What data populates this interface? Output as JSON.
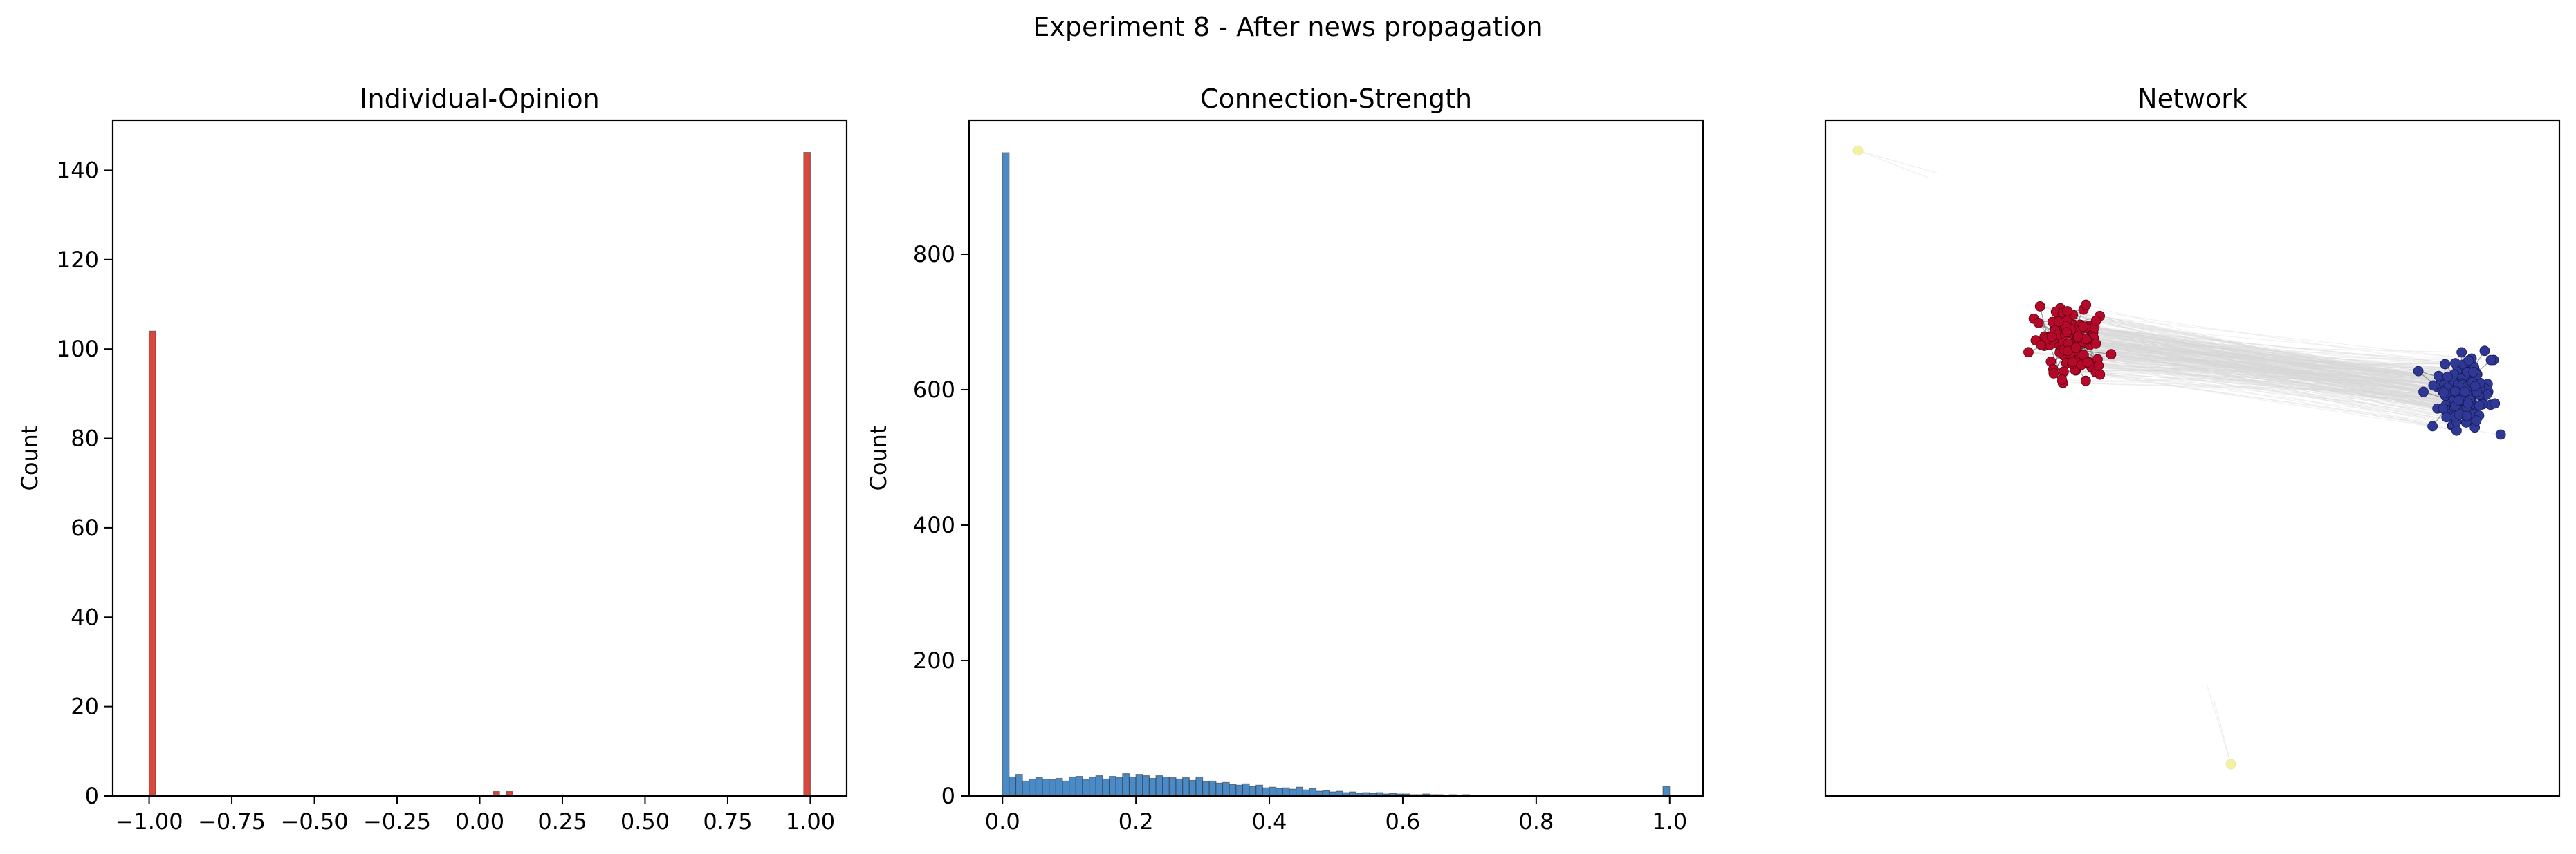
{
  "figure": {
    "suptitle": "Experiment 8 - After news propagation"
  },
  "chart_data": [
    {
      "type": "bar",
      "title": "Individual-Opinion",
      "xlabel": "",
      "ylabel": "Count",
      "xlim": [
        -1.11,
        1.11
      ],
      "ylim": [
        0,
        151.2
      ],
      "xticks": [
        -1.0,
        -0.75,
        -0.5,
        -0.25,
        0.0,
        0.25,
        0.5,
        0.75,
        1.0
      ],
      "xtick_labels": [
        "−1.00",
        "−0.75",
        "−0.50",
        "−0.25",
        "0.00",
        "0.25",
        "0.50",
        "0.75",
        "1.00"
      ],
      "yticks": [
        0,
        20,
        40,
        60,
        80,
        100,
        120,
        140
      ],
      "ytick_labels": [
        "0",
        "20",
        "40",
        "60",
        "80",
        "100",
        "120",
        "140"
      ],
      "bin_width": 0.02,
      "bars": [
        {
          "x": -0.99,
          "value": 104
        },
        {
          "x": 0.05,
          "value": 1
        },
        {
          "x": 0.09,
          "value": 1
        },
        {
          "x": 0.99,
          "value": 144
        }
      ],
      "color": "#d9473d",
      "grid": false
    },
    {
      "type": "bar",
      "title": "Connection-Strength",
      "xlabel": "",
      "ylabel": "Count",
      "xlim": [
        -0.05,
        1.05
      ],
      "ylim": [
        0,
        998
      ],
      "xticks": [
        0.0,
        0.2,
        0.4,
        0.6,
        0.8,
        1.0
      ],
      "xtick_labels": [
        "0.0",
        "0.2",
        "0.4",
        "0.6",
        "0.8",
        "1.0"
      ],
      "yticks": [
        0,
        200,
        400,
        600,
        800
      ],
      "ytick_labels": [
        "0",
        "200",
        "400",
        "600",
        "800"
      ],
      "bin_width": 0.01,
      "bin_start": 0.0,
      "values": [
        950,
        28,
        32,
        22,
        25,
        27,
        25,
        24,
        26,
        22,
        28,
        29,
        24,
        28,
        30,
        25,
        29,
        27,
        33,
        28,
        32,
        30,
        26,
        30,
        28,
        27,
        25,
        27,
        23,
        28,
        21,
        22,
        19,
        20,
        17,
        16,
        18,
        14,
        16,
        12,
        13,
        11,
        12,
        10,
        13,
        9,
        11,
        7,
        8,
        6,
        7,
        5,
        6,
        4,
        5,
        4,
        5,
        3,
        4,
        3,
        3,
        2,
        2,
        3,
        2,
        2,
        1,
        2,
        1,
        2,
        1,
        1,
        1,
        1,
        1,
        1,
        0,
        1,
        0,
        1,
        0,
        0,
        0,
        0,
        0,
        0,
        0,
        0,
        0,
        0,
        0,
        0,
        0,
        0,
        0,
        0,
        0,
        0,
        0,
        14
      ],
      "color": "#4a8ac6",
      "grid": false
    },
    {
      "type": "network",
      "title": "Network",
      "clusters": [
        {
          "group": "opinion -1",
          "color": "#b5092a",
          "approx_nodes": 104
        },
        {
          "group": "opinion +1",
          "color": "#303896",
          "approx_nodes": 144
        },
        {
          "group": "neutral",
          "color": "#f2f2a0",
          "approx_nodes": 2
        }
      ],
      "edge_colors": {
        "intra": "#555555",
        "inter": "#d8d8d8"
      },
      "axes": "off"
    }
  ]
}
